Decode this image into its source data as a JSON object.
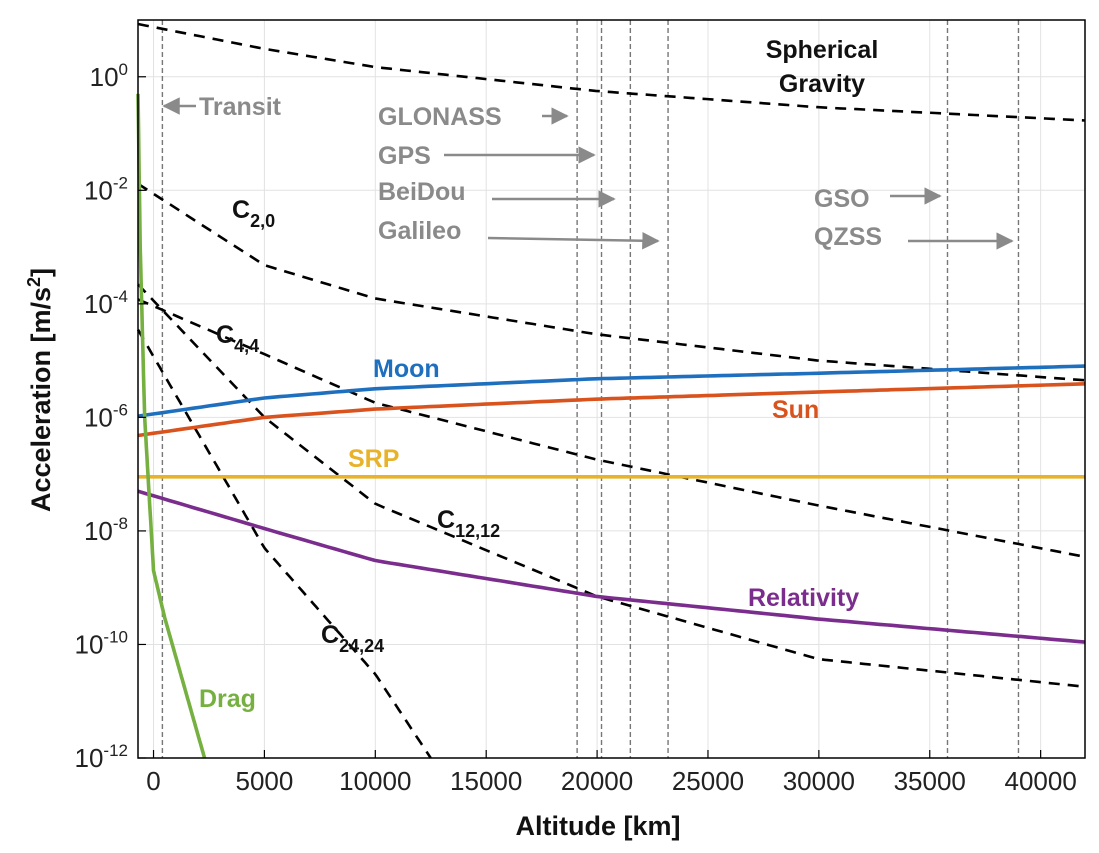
{
  "chart_data": {
    "type": "line",
    "xlabel": "Altitude [km]",
    "ylabel_text": "Acceleration [m/s",
    "ylabel_sup": "2",
    "ylabel_close": "]",
    "xlim": [
      -700,
      42000
    ],
    "ylim": [
      1e-12,
      10.0
    ],
    "yscale": "log",
    "grid": true,
    "x_ticks": [
      0,
      5000,
      10000,
      15000,
      20000,
      25000,
      30000,
      35000,
      40000
    ],
    "y_ticks": [
      {
        "base": "10",
        "exp": "0",
        "value": 1
      },
      {
        "base": "10",
        "exp": "-2",
        "value": 0.01
      },
      {
        "base": "10",
        "exp": "-4",
        "value": 0.0001
      },
      {
        "base": "10",
        "exp": "-6",
        "value": 1e-06
      },
      {
        "base": "10",
        "exp": "-8",
        "value": 1e-08
      },
      {
        "base": "10",
        "exp": "-10",
        "value": 1e-10
      },
      {
        "base": "10",
        "exp": "-12",
        "value": 1e-12
      }
    ],
    "series": [
      {
        "name": "Spherical Gravity",
        "style": "dashed",
        "color": "#000000",
        "x": [
          -700,
          5000,
          10000,
          20000,
          30000,
          42000
        ],
        "y": [
          8.5,
          3.1,
          1.48,
          0.56,
          0.29,
          0.17
        ]
      },
      {
        "name": "C2,0",
        "style": "dashed",
        "color": "#000000",
        "x": [
          -700,
          5000,
          10000,
          20000,
          30000,
          42000
        ],
        "y": [
          0.013,
          0.00048,
          0.000124,
          2.9e-05,
          1e-05,
          4.5e-06
        ]
      },
      {
        "name": "C4,4",
        "style": "dashed",
        "color": "#000000",
        "x": [
          -700,
          5000,
          10000,
          20000,
          30000,
          42000
        ],
        "y": [
          0.00012,
          1.3e-05,
          1.8e-06,
          1.8e-07,
          2.8e-08,
          3.5e-09
        ]
      },
      {
        "name": "C12,12",
        "style": "dashed",
        "color": "#000000",
        "x": [
          -700,
          5000,
          10000,
          20000,
          30000,
          42000
        ],
        "y": [
          0.00022,
          1e-06,
          3e-08,
          7e-10,
          5.5e-11,
          1.8e-11
        ]
      },
      {
        "name": "C24,24",
        "style": "dashed",
        "color": "#000000",
        "x": [
          -700,
          5000,
          10000,
          12500
        ],
        "y": [
          3.5e-05,
          5e-09,
          3e-11,
          1e-12
        ]
      },
      {
        "name": "Moon",
        "style": "solid",
        "color": "#1f6fbf",
        "x": [
          -700,
          5000,
          10000,
          20000,
          30000,
          42000
        ],
        "y": [
          1.05e-06,
          2.2e-06,
          3.2e-06,
          4.8e-06,
          6e-06,
          8e-06
        ]
      },
      {
        "name": "Sun",
        "style": "solid",
        "color": "#d9531e",
        "x": [
          -700,
          5000,
          10000,
          20000,
          30000,
          42000
        ],
        "y": [
          4.8e-07,
          1e-06,
          1.4e-06,
          2.1e-06,
          2.8e-06,
          3.9e-06
        ]
      },
      {
        "name": "SRP",
        "style": "solid",
        "color": "#e8b22a",
        "x": [
          -700,
          42000
        ],
        "y": [
          9e-08,
          9e-08
        ]
      },
      {
        "name": "Relativity",
        "style": "solid",
        "color": "#7b2d8e",
        "x": [
          -700,
          5000,
          10000,
          20000,
          30000,
          42000
        ],
        "y": [
          5e-08,
          1.1e-08,
          3e-09,
          7e-10,
          2.8e-10,
          1.1e-10
        ]
      },
      {
        "name": "Drag",
        "style": "solid",
        "color": "#76b041",
        "x": [
          -700,
          -600,
          -400,
          0,
          500,
          2300
        ],
        "y": [
          0.5,
          0.001,
          1e-06,
          2e-09,
          3e-10,
          1e-12
        ]
      }
    ],
    "orbit_lines": [
      {
        "name": "Transit",
        "x": 400
      },
      {
        "name": "GLONASS",
        "x": 19100
      },
      {
        "name": "GPS",
        "x": 20200
      },
      {
        "name": "BeiDou",
        "x": 21500
      },
      {
        "name": "Galileo",
        "x": 23200
      },
      {
        "name": "GSO",
        "x": 35800
      },
      {
        "name": "QZSS",
        "x": 39000
      }
    ],
    "labels": {
      "spherical_gravity_1": "Spherical",
      "spherical_gravity_2": "Gravity",
      "c20_base": "C",
      "c20_sub": "2,0",
      "c44_base": "C",
      "c44_sub": "4,4",
      "c1212_base": "C",
      "c1212_sub": "12,12",
      "c2424_base": "C",
      "c2424_sub": "24,24",
      "moon": "Moon",
      "sun": "Sun",
      "srp": "SRP",
      "relativity": "Relativity",
      "drag": "Drag",
      "transit": "Transit",
      "glonass": "GLONASS",
      "gps": "GPS",
      "beidou": "BeiDou",
      "galileo": "Galileo",
      "gso": "GSO",
      "qzss": "QZSS"
    }
  }
}
